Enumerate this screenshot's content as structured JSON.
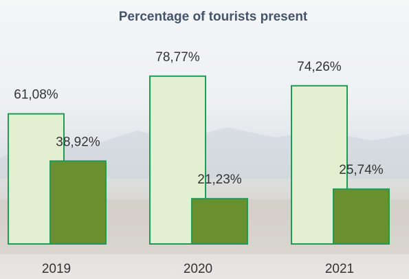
{
  "chart_data": {
    "type": "bar",
    "title": "Percentage of tourists present",
    "categories": [
      "2019",
      "2020",
      "2021"
    ],
    "series": [
      {
        "color": "#e3efd1",
        "edge_color": "#1f9a57",
        "values": [
          61.08,
          78.77,
          74.26
        ],
        "value_labels": [
          "61,08%",
          "78,77%",
          "74,26%"
        ]
      },
      {
        "color": "#6a8f2e",
        "edge_color": "#1f9a57",
        "values": [
          38.92,
          21.23,
          25.74
        ],
        "value_labels": [
          "38,92%",
          "21,23%",
          "25,74%"
        ]
      }
    ]
  }
}
